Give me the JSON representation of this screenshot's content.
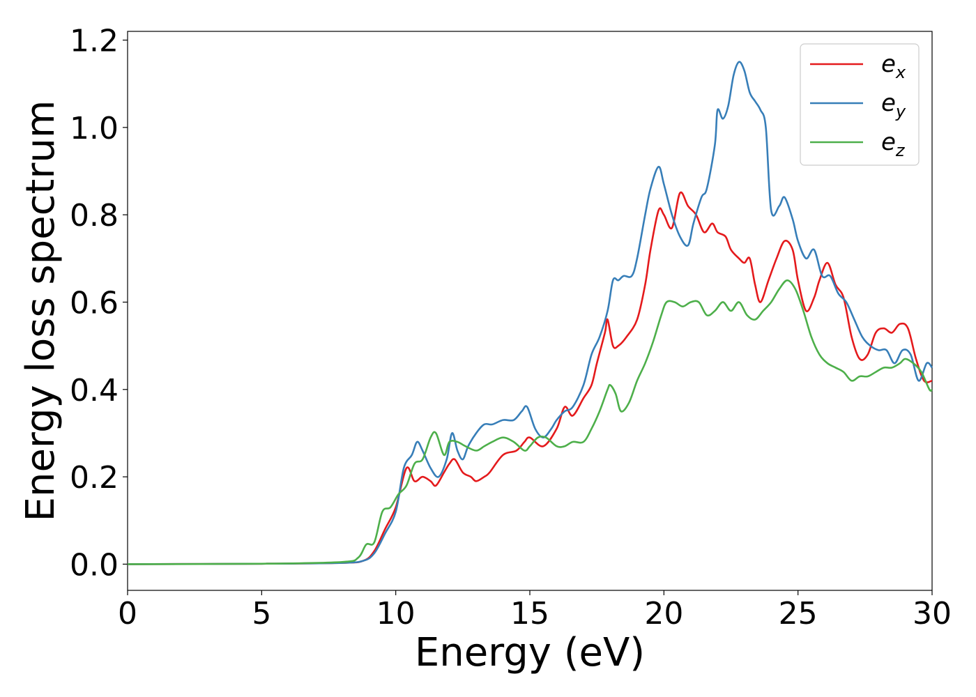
{
  "chart_data": {
    "type": "line",
    "xlabel": "Energy (eV)",
    "ylabel": "Energy loss spectrum",
    "xlim": [
      0,
      30
    ],
    "ylim": [
      -0.06,
      1.22
    ],
    "xticks": [
      0,
      5,
      10,
      15,
      20,
      25,
      30
    ],
    "xtick_labels": [
      "0",
      "5",
      "10",
      "15",
      "20",
      "25",
      "30"
    ],
    "yticks": [
      0.0,
      0.2,
      0.4,
      0.6,
      0.8,
      1.0,
      1.2
    ],
    "ytick_labels": [
      "0.0",
      "0.2",
      "0.4",
      "0.6",
      "0.8",
      "1.0",
      "1.2"
    ],
    "grid": false,
    "legend_position": "top-right",
    "series": [
      {
        "name": "e_x",
        "label_base": "e",
        "label_sub": "x",
        "color": "#e41a1c",
        "x": [
          0,
          5,
          8,
          8.8,
          9.2,
          9.6,
          10.0,
          10.4,
          10.7,
          11.0,
          11.3,
          11.5,
          11.8,
          12.0,
          12.2,
          12.5,
          12.8,
          13.0,
          13.3,
          13.5,
          14.0,
          14.5,
          14.8,
          15.0,
          15.5,
          16.0,
          16.3,
          16.6,
          17.0,
          17.3,
          17.5,
          17.8,
          17.9,
          18.1,
          18.3,
          18.6,
          19.0,
          19.3,
          19.5,
          19.8,
          20.0,
          20.3,
          20.6,
          20.9,
          21.2,
          21.5,
          21.8,
          22.0,
          22.3,
          22.5,
          22.8,
          23.0,
          23.2,
          23.4,
          23.6,
          23.9,
          24.2,
          24.5,
          24.8,
          25.0,
          25.3,
          25.6,
          25.8,
          26.1,
          26.4,
          26.7,
          27.0,
          27.3,
          27.6,
          27.9,
          28.2,
          28.5,
          28.8,
          29.1,
          29.4,
          29.7,
          30.0
        ],
        "y": [
          0.0,
          0.001,
          0.003,
          0.008,
          0.03,
          0.08,
          0.13,
          0.22,
          0.19,
          0.2,
          0.19,
          0.18,
          0.21,
          0.23,
          0.24,
          0.21,
          0.2,
          0.19,
          0.2,
          0.21,
          0.25,
          0.26,
          0.28,
          0.29,
          0.27,
          0.31,
          0.36,
          0.34,
          0.38,
          0.41,
          0.46,
          0.53,
          0.56,
          0.5,
          0.5,
          0.52,
          0.56,
          0.64,
          0.72,
          0.81,
          0.8,
          0.77,
          0.85,
          0.82,
          0.8,
          0.76,
          0.78,
          0.76,
          0.75,
          0.72,
          0.7,
          0.69,
          0.7,
          0.64,
          0.6,
          0.65,
          0.7,
          0.74,
          0.72,
          0.65,
          0.58,
          0.61,
          0.65,
          0.69,
          0.64,
          0.61,
          0.52,
          0.47,
          0.48,
          0.53,
          0.54,
          0.53,
          0.55,
          0.54,
          0.47,
          0.42,
          0.42
        ]
      },
      {
        "name": "e_y",
        "label_base": "e",
        "label_sub": "y",
        "color": "#377eb8",
        "x": [
          0,
          5,
          8,
          8.8,
          9.2,
          9.6,
          10.0,
          10.3,
          10.6,
          10.8,
          11.0,
          11.3,
          11.6,
          11.9,
          12.1,
          12.3,
          12.5,
          12.7,
          13.0,
          13.3,
          13.6,
          14.0,
          14.4,
          14.7,
          14.9,
          15.2,
          15.5,
          15.8,
          16.0,
          16.3,
          16.6,
          17.0,
          17.3,
          17.6,
          17.9,
          18.1,
          18.3,
          18.5,
          18.8,
          19.0,
          19.3,
          19.5,
          19.8,
          20.0,
          20.3,
          20.6,
          20.9,
          21.1,
          21.4,
          21.6,
          21.9,
          22.0,
          22.2,
          22.4,
          22.6,
          22.8,
          23.0,
          23.2,
          23.4,
          23.6,
          23.8,
          24.0,
          24.3,
          24.5,
          24.8,
          25.0,
          25.3,
          25.6,
          25.9,
          26.2,
          26.5,
          26.8,
          27.1,
          27.4,
          27.7,
          28.0,
          28.3,
          28.6,
          28.9,
          29.2,
          29.5,
          29.8,
          30.0
        ],
        "y": [
          0.0,
          0.001,
          0.003,
          0.008,
          0.025,
          0.07,
          0.12,
          0.22,
          0.25,
          0.28,
          0.26,
          0.22,
          0.2,
          0.24,
          0.3,
          0.26,
          0.24,
          0.27,
          0.3,
          0.32,
          0.32,
          0.33,
          0.33,
          0.35,
          0.36,
          0.31,
          0.29,
          0.31,
          0.33,
          0.35,
          0.36,
          0.41,
          0.48,
          0.52,
          0.58,
          0.65,
          0.65,
          0.66,
          0.66,
          0.7,
          0.8,
          0.86,
          0.91,
          0.87,
          0.8,
          0.75,
          0.73,
          0.78,
          0.84,
          0.86,
          0.96,
          1.04,
          1.02,
          1.05,
          1.12,
          1.15,
          1.13,
          1.08,
          1.06,
          1.04,
          1.0,
          0.81,
          0.82,
          0.84,
          0.79,
          0.74,
          0.7,
          0.72,
          0.66,
          0.66,
          0.62,
          0.6,
          0.56,
          0.52,
          0.5,
          0.49,
          0.49,
          0.46,
          0.49,
          0.48,
          0.42,
          0.46,
          0.45
        ]
      },
      {
        "name": "e_z",
        "label_base": "e",
        "label_sub": "z",
        "color": "#4daf4a",
        "x": [
          0,
          5,
          8,
          8.6,
          8.9,
          9.2,
          9.5,
          9.8,
          10.1,
          10.4,
          10.7,
          11.0,
          11.3,
          11.5,
          11.8,
          12.0,
          12.3,
          12.6,
          13.0,
          13.3,
          13.6,
          14.0,
          14.4,
          14.8,
          15.0,
          15.3,
          15.6,
          16.0,
          16.3,
          16.6,
          17.0,
          17.3,
          17.6,
          17.9,
          18.0,
          18.2,
          18.4,
          18.7,
          19.0,
          19.3,
          19.6,
          19.9,
          20.1,
          20.4,
          20.7,
          21.0,
          21.3,
          21.6,
          21.9,
          22.2,
          22.5,
          22.8,
          23.1,
          23.4,
          23.7,
          24.0,
          24.3,
          24.6,
          24.9,
          25.2,
          25.5,
          25.8,
          26.1,
          26.4,
          26.7,
          27.0,
          27.3,
          27.6,
          27.9,
          28.2,
          28.5,
          28.8,
          29.0,
          29.3,
          29.6,
          29.9,
          30.0
        ],
        "y": [
          0.0,
          0.001,
          0.005,
          0.015,
          0.045,
          0.05,
          0.12,
          0.13,
          0.16,
          0.18,
          0.23,
          0.24,
          0.29,
          0.3,
          0.25,
          0.28,
          0.28,
          0.27,
          0.26,
          0.27,
          0.28,
          0.29,
          0.28,
          0.26,
          0.27,
          0.29,
          0.29,
          0.27,
          0.27,
          0.28,
          0.28,
          0.31,
          0.35,
          0.4,
          0.41,
          0.39,
          0.35,
          0.37,
          0.42,
          0.46,
          0.51,
          0.57,
          0.6,
          0.6,
          0.59,
          0.6,
          0.6,
          0.57,
          0.58,
          0.6,
          0.58,
          0.6,
          0.57,
          0.56,
          0.58,
          0.6,
          0.63,
          0.65,
          0.63,
          0.58,
          0.52,
          0.48,
          0.46,
          0.45,
          0.44,
          0.42,
          0.43,
          0.43,
          0.44,
          0.45,
          0.45,
          0.46,
          0.47,
          0.46,
          0.44,
          0.4,
          0.4
        ]
      }
    ]
  }
}
